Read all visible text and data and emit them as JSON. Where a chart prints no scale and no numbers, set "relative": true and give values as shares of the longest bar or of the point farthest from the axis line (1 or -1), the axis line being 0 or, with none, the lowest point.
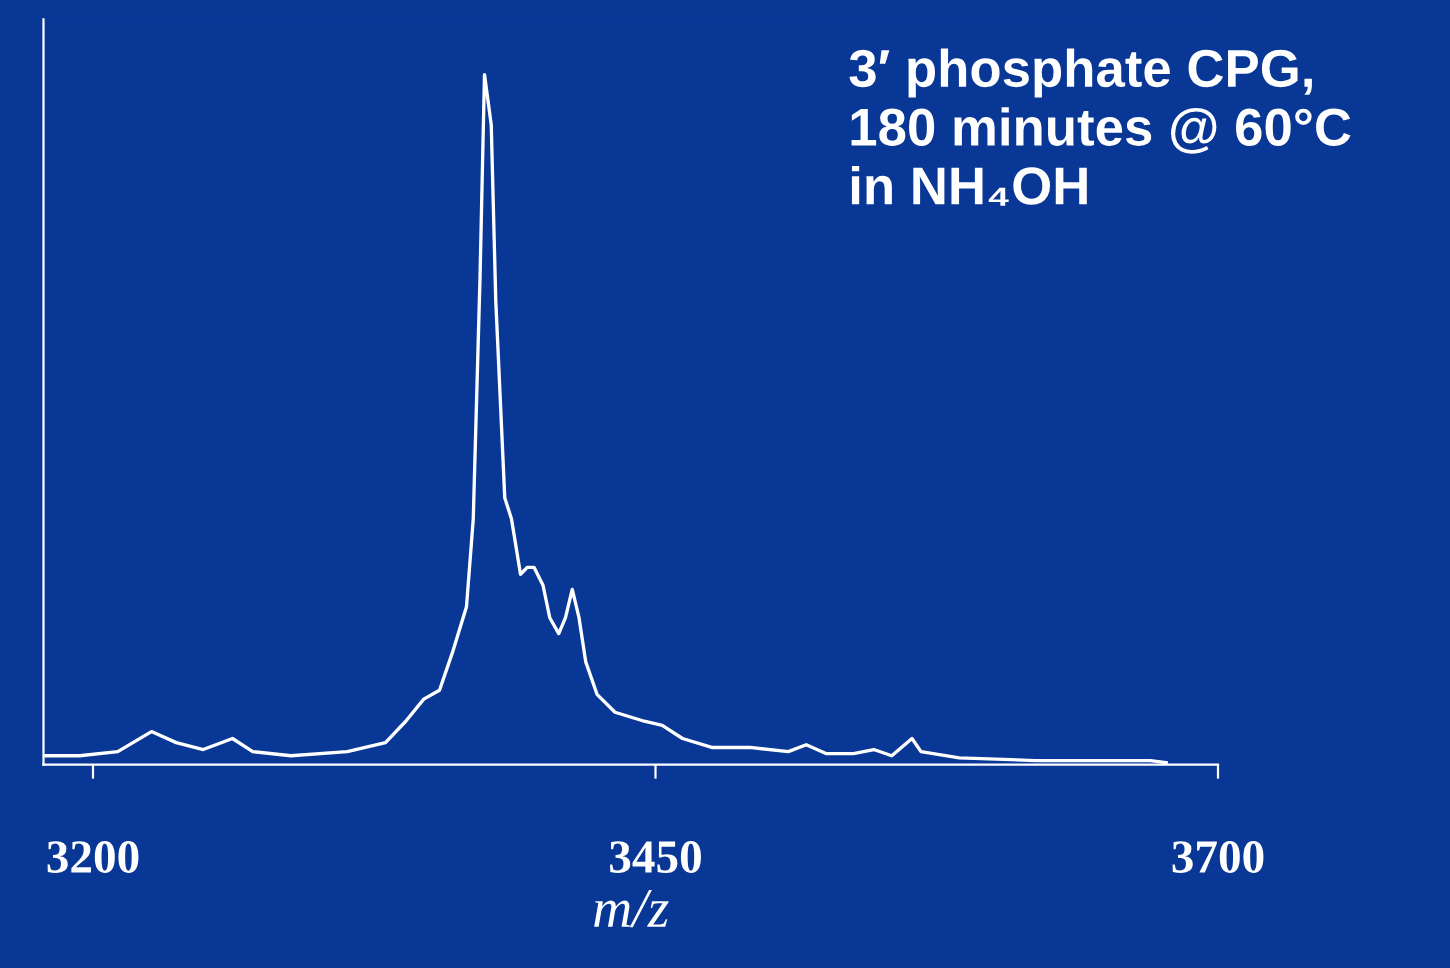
{
  "chart_data": {
    "type": "line",
    "relative": true,
    "xlabel": "m/z",
    "annotations": [
      "3′ phosphate CPG,\n180 minutes @ 60°C\nin NH₄OH"
    ],
    "xlim": [
      3178,
      3700
    ],
    "xticks": [
      3200,
      3450,
      3700
    ],
    "series": [
      {
        "color": "#ffffff",
        "x": [
          3179,
          3194,
          3211,
          3226,
          3237,
          3249,
          3262,
          3271,
          3288,
          3313,
          3330,
          3339,
          3347,
          3354,
          3360,
          3366,
          3369,
          3372,
          3374,
          3377,
          3379,
          3383,
          3386,
          3390,
          3393,
          3396,
          3400,
          3403,
          3407,
          3410,
          3413,
          3416,
          3419,
          3424,
          3432,
          3445,
          3453,
          3462,
          3475,
          3492,
          3509,
          3517,
          3526,
          3538,
          3547,
          3555,
          3564,
          3568,
          3585,
          3619,
          3653,
          3670,
          3677
        ],
        "values": [
          0.013,
          0.013,
          0.019,
          0.048,
          0.032,
          0.022,
          0.038,
          0.019,
          0.013,
          0.019,
          0.032,
          0.063,
          0.095,
          0.108,
          0.165,
          0.229,
          0.356,
          0.705,
          1,
          0.927,
          0.673,
          0.387,
          0.356,
          0.276,
          0.286,
          0.286,
          0.26,
          0.213,
          0.19,
          0.213,
          0.254,
          0.213,
          0.149,
          0.102,
          0.076,
          0.063,
          0.057,
          0.038,
          0.025,
          0.025,
          0.019,
          0.029,
          0.016,
          0.016,
          0.022,
          0.013,
          0.038,
          0.019,
          0.01,
          0.006,
          0.006,
          0.006,
          0.003
        ]
      }
    ]
  }
}
